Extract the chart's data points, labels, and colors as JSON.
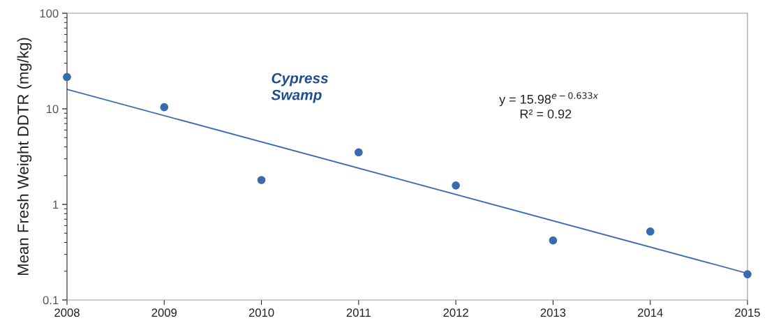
{
  "chart_data": {
    "type": "scatter",
    "ylabel": "Mean Fresh Weight DDTR (mg/kg)",
    "log": "y",
    "x": [
      2008,
      2009,
      2010,
      2011,
      2012,
      2013,
      2014,
      2015
    ],
    "series": [
      {
        "color": "#3a6baf",
        "marker": "circle",
        "values": [
          21.5,
          10.4,
          1.8,
          3.5,
          1.58,
          0.42,
          0.52,
          0.186
        ]
      },
      {
        "type": "line",
        "color": "#3a6baf",
        "x": [
          2008,
          2015
        ],
        "values": [
          16,
          0.19
        ]
      }
    ],
    "xlim": [
      2008,
      2015
    ],
    "xticks": [
      2008,
      2009,
      2010,
      2011,
      2012,
      2013,
      2014,
      2015
    ],
    "ylim": [
      0.1,
      100
    ],
    "yticks": [
      0.1,
      1,
      10,
      100
    ],
    "grid": false,
    "legend": false,
    "annotations": [
      "Cypress Swamp",
      "y = 15.98$^{e−0.633x}$",
      "R² = 0.92"
    ]
  }
}
